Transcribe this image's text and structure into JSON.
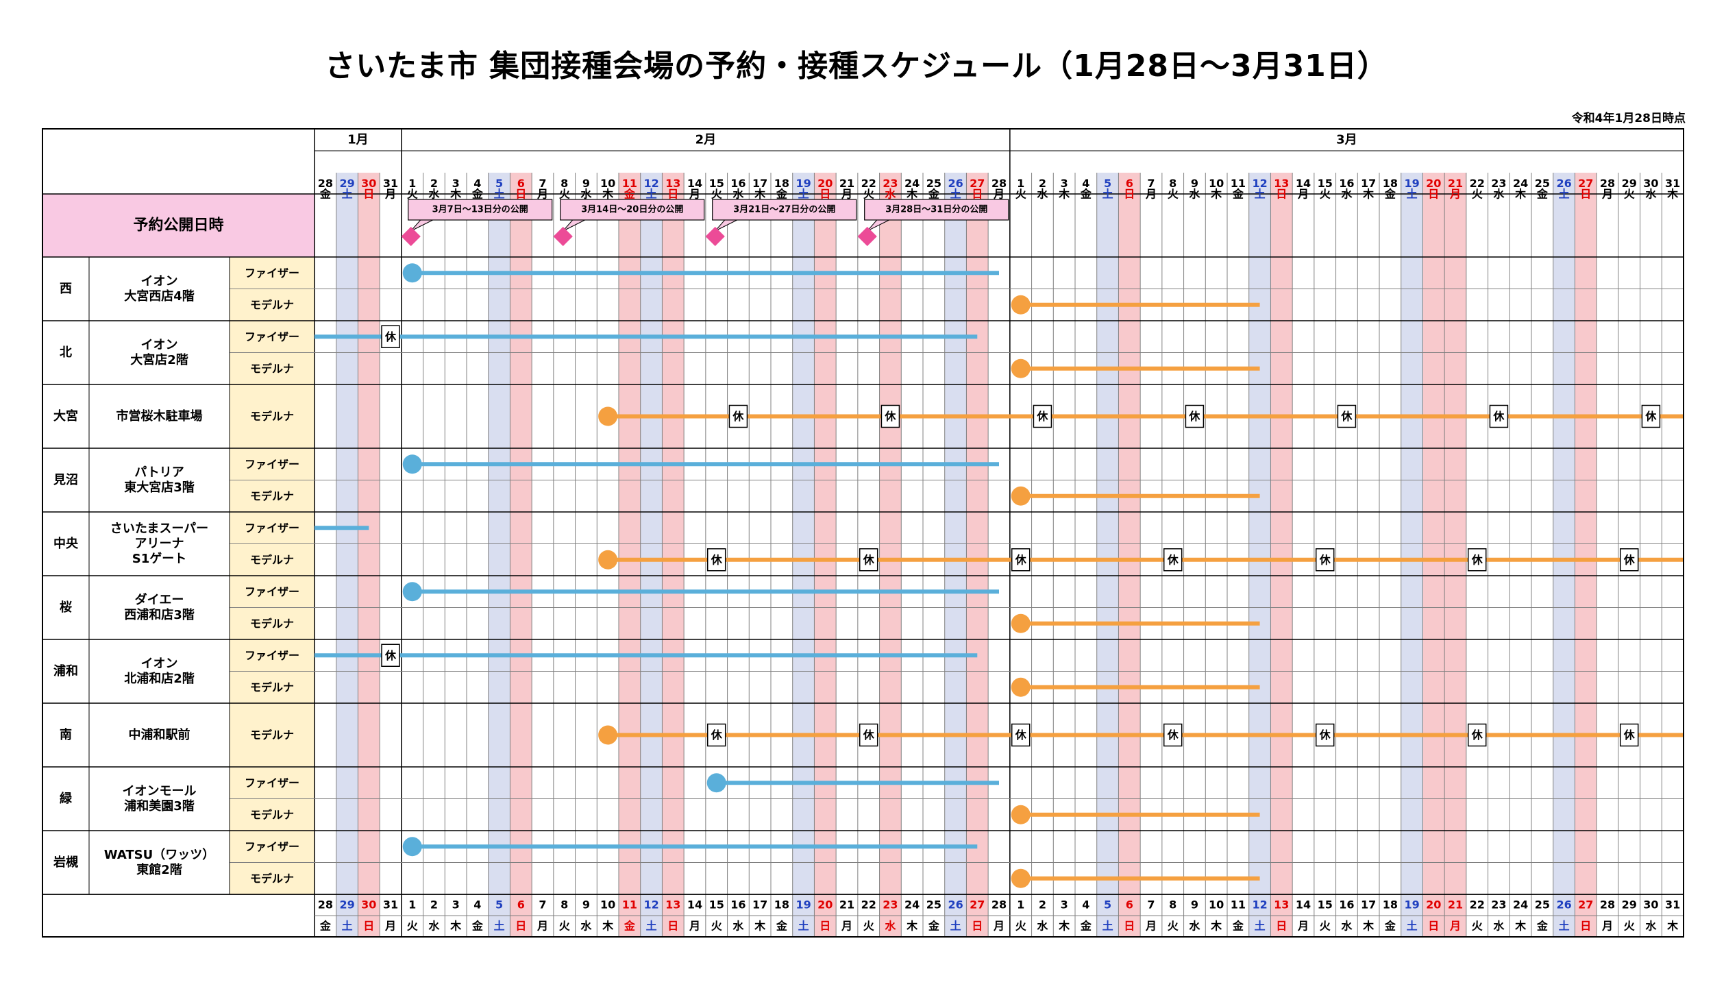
{
  "title": "さいたま市 集団接種会場の予約・接種スケジュール（1月28日～3月31日）",
  "as_of": "令和4年1月28日時点",
  "months": [
    {
      "label": "1月"
    },
    {
      "label": "2月"
    },
    {
      "label": "3月"
    }
  ],
  "days": [
    {
      "d": "28",
      "w": "金",
      "t": "w"
    },
    {
      "d": "29",
      "w": "土",
      "t": "sat"
    },
    {
      "d": "30",
      "w": "日",
      "t": "hol"
    },
    {
      "d": "31",
      "w": "月",
      "t": "w"
    },
    {
      "d": "1",
      "w": "火",
      "t": "w"
    },
    {
      "d": "2",
      "w": "水",
      "t": "w"
    },
    {
      "d": "3",
      "w": "木",
      "t": "w"
    },
    {
      "d": "4",
      "w": "金",
      "t": "w"
    },
    {
      "d": "5",
      "w": "土",
      "t": "sat"
    },
    {
      "d": "6",
      "w": "日",
      "t": "hol"
    },
    {
      "d": "7",
      "w": "月",
      "t": "w"
    },
    {
      "d": "8",
      "w": "火",
      "t": "w"
    },
    {
      "d": "9",
      "w": "水",
      "t": "w"
    },
    {
      "d": "10",
      "w": "木",
      "t": "w"
    },
    {
      "d": "11",
      "w": "金",
      "t": "hol"
    },
    {
      "d": "12",
      "w": "土",
      "t": "sat"
    },
    {
      "d": "13",
      "w": "日",
      "t": "hol"
    },
    {
      "d": "14",
      "w": "月",
      "t": "w"
    },
    {
      "d": "15",
      "w": "火",
      "t": "w"
    },
    {
      "d": "16",
      "w": "水",
      "t": "w"
    },
    {
      "d": "17",
      "w": "木",
      "t": "w"
    },
    {
      "d": "18",
      "w": "金",
      "t": "w"
    },
    {
      "d": "19",
      "w": "土",
      "t": "sat"
    },
    {
      "d": "20",
      "w": "日",
      "t": "hol"
    },
    {
      "d": "21",
      "w": "月",
      "t": "w"
    },
    {
      "d": "22",
      "w": "火",
      "t": "w"
    },
    {
      "d": "23",
      "w": "水",
      "t": "hol"
    },
    {
      "d": "24",
      "w": "木",
      "t": "w"
    },
    {
      "d": "25",
      "w": "金",
      "t": "w"
    },
    {
      "d": "26",
      "w": "土",
      "t": "sat"
    },
    {
      "d": "27",
      "w": "日",
      "t": "hol"
    },
    {
      "d": "28",
      "w": "月",
      "t": "w"
    },
    {
      "d": "1",
      "w": "火",
      "t": "w"
    },
    {
      "d": "2",
      "w": "水",
      "t": "w"
    },
    {
      "d": "3",
      "w": "木",
      "t": "w"
    },
    {
      "d": "4",
      "w": "金",
      "t": "w"
    },
    {
      "d": "5",
      "w": "土",
      "t": "sat"
    },
    {
      "d": "6",
      "w": "日",
      "t": "hol"
    },
    {
      "d": "7",
      "w": "月",
      "t": "w"
    },
    {
      "d": "8",
      "w": "火",
      "t": "w"
    },
    {
      "d": "9",
      "w": "水",
      "t": "w"
    },
    {
      "d": "10",
      "w": "木",
      "t": "w"
    },
    {
      "d": "11",
      "w": "金",
      "t": "w"
    },
    {
      "d": "12",
      "w": "土",
      "t": "sat"
    },
    {
      "d": "13",
      "w": "日",
      "t": "hol"
    },
    {
      "d": "14",
      "w": "月",
      "t": "w"
    },
    {
      "d": "15",
      "w": "火",
      "t": "w"
    },
    {
      "d": "16",
      "w": "水",
      "t": "w"
    },
    {
      "d": "17",
      "w": "木",
      "t": "w"
    },
    {
      "d": "18",
      "w": "金",
      "t": "w"
    },
    {
      "d": "19",
      "w": "土",
      "t": "sat"
    },
    {
      "d": "20",
      "w": "日",
      "t": "hol"
    },
    {
      "d": "21",
      "w": "月",
      "t": "hol"
    },
    {
      "d": "22",
      "w": "火",
      "t": "w"
    },
    {
      "d": "23",
      "w": "水",
      "t": "w"
    },
    {
      "d": "24",
      "w": "木",
      "t": "w"
    },
    {
      "d": "25",
      "w": "金",
      "t": "w"
    },
    {
      "d": "26",
      "w": "土",
      "t": "sat"
    },
    {
      "d": "27",
      "w": "日",
      "t": "hol"
    },
    {
      "d": "28",
      "w": "月",
      "t": "w"
    },
    {
      "d": "29",
      "w": "火",
      "t": "w"
    },
    {
      "d": "30",
      "w": "水",
      "t": "w"
    },
    {
      "d": "31",
      "w": "木",
      "t": "w"
    }
  ],
  "release": {
    "label": "予約公開日時",
    "callouts": [
      {
        "text": "3月7日～13日分の公開",
        "day": 4
      },
      {
        "text": "3月14日～20日分の公開",
        "day": 11
      },
      {
        "text": "3月21日～27日分の公開",
        "day": 18
      },
      {
        "text": "3月28日～31日分の公開",
        "day": 25
      }
    ]
  },
  "closed_label": "休",
  "vaccines": {
    "pfizer": "ファイザー",
    "moderna": "モデルナ"
  },
  "colors": {
    "pfizer": "#5AAFDA",
    "moderna": "#F5A040",
    "sat": "#D9DEF0",
    "hol": "#F8C9CC",
    "release_bg": "#F9C9E3",
    "diamond": "#EC4B97",
    "vaccine_bg": "#FFF2CC",
    "sat_text": "#1F3FBF",
    "hol_text": "#E00000"
  },
  "venues": [
    {
      "ward": "西",
      "name": [
        "イオン",
        "大宮西店4階"
      ],
      "rows": [
        {
          "v": "pfizer",
          "start": 4,
          "end": 31,
          "dot": true,
          "closed": []
        },
        {
          "v": "moderna",
          "start": 32,
          "end": 43,
          "dot": true,
          "closed": []
        }
      ]
    },
    {
      "ward": "北",
      "name": [
        "イオン",
        "大宮店2階"
      ],
      "rows": [
        {
          "v": "pfizer",
          "start": 0,
          "end": 30,
          "dot": false,
          "closed": [
            3
          ]
        },
        {
          "v": "moderna",
          "start": 32,
          "end": 43,
          "dot": true,
          "closed": []
        }
      ]
    },
    {
      "ward": "大宮",
      "name": [
        "市営桜木駐車場"
      ],
      "rows": [
        {
          "v": "moderna",
          "start": 13,
          "end": 62,
          "dot": true,
          "closed": [
            19,
            26,
            33,
            40,
            47,
            54,
            61
          ]
        }
      ]
    },
    {
      "ward": "見沼",
      "name": [
        "パトリア",
        "東大宮店3階"
      ],
      "rows": [
        {
          "v": "pfizer",
          "start": 4,
          "end": 31,
          "dot": true,
          "closed": []
        },
        {
          "v": "moderna",
          "start": 32,
          "end": 43,
          "dot": true,
          "closed": []
        }
      ]
    },
    {
      "ward": "中央",
      "name": [
        "さいたまスーパー",
        "アリーナ",
        "S1ゲート"
      ],
      "rows": [
        {
          "v": "pfizer",
          "start": 0,
          "end": 2,
          "dot": false,
          "closed": []
        },
        {
          "v": "moderna",
          "start": 13,
          "end": 62,
          "dot": true,
          "closed": [
            18,
            25,
            32,
            39,
            46,
            53,
            60
          ]
        }
      ]
    },
    {
      "ward": "桜",
      "name": [
        "ダイエー",
        "西浦和店3階"
      ],
      "rows": [
        {
          "v": "pfizer",
          "start": 4,
          "end": 31,
          "dot": true,
          "closed": []
        },
        {
          "v": "moderna",
          "start": 32,
          "end": 43,
          "dot": true,
          "closed": []
        }
      ]
    },
    {
      "ward": "浦和",
      "name": [
        "イオン",
        "北浦和店2階"
      ],
      "rows": [
        {
          "v": "pfizer",
          "start": 0,
          "end": 30,
          "dot": false,
          "closed": [
            3
          ]
        },
        {
          "v": "moderna",
          "start": 32,
          "end": 43,
          "dot": true,
          "closed": []
        }
      ]
    },
    {
      "ward": "南",
      "name": [
        "中浦和駅前"
      ],
      "rows": [
        {
          "v": "moderna",
          "start": 13,
          "end": 62,
          "dot": true,
          "closed": [
            18,
            25,
            32,
            39,
            46,
            53,
            60
          ]
        }
      ]
    },
    {
      "ward": "緑",
      "name": [
        "イオンモール",
        "浦和美園3階"
      ],
      "rows": [
        {
          "v": "pfizer",
          "start": 18,
          "end": 31,
          "dot": true,
          "closed": []
        },
        {
          "v": "moderna",
          "start": 32,
          "end": 43,
          "dot": true,
          "closed": []
        }
      ]
    },
    {
      "ward": "岩槻",
      "name": [
        "WATSU（ワッツ）",
        "東館2階"
      ],
      "rows": [
        {
          "v": "pfizer",
          "start": 4,
          "end": 30,
          "dot": true,
          "closed": []
        },
        {
          "v": "moderna",
          "start": 32,
          "end": 43,
          "dot": true,
          "closed": []
        }
      ]
    }
  ]
}
